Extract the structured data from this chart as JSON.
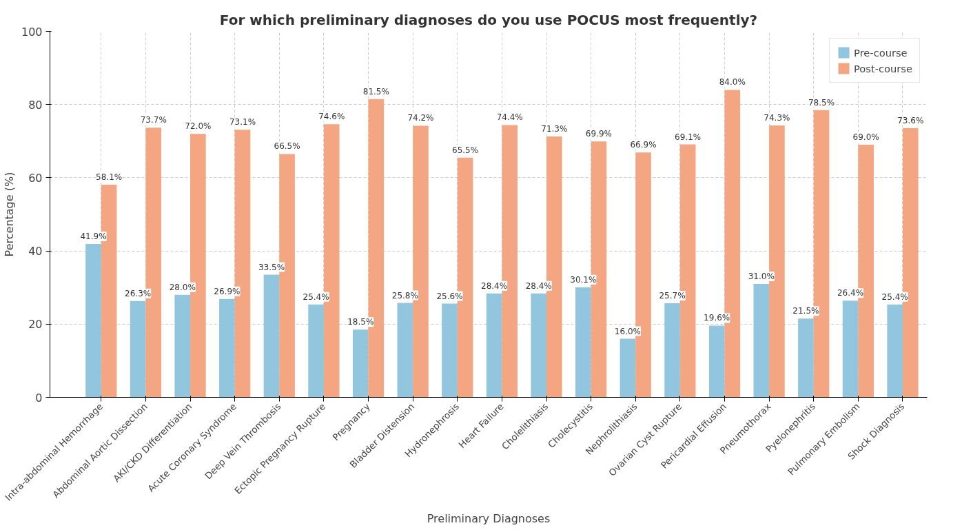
{
  "chart_data": {
    "type": "bar",
    "title": "For which preliminary diagnoses do you use POCUS most frequently?",
    "xlabel": "Preliminary Diagnoses",
    "ylabel": "Percentage (%)",
    "categories": [
      "Intra-abdominal Hemorrhage",
      "Abdominal Aortic Dissection",
      "AKI/CKD Differentiation",
      "Acute Coronary Syndrome",
      "Deep Vein Thrombosis",
      "Ectopic Pregnancy Rupture",
      "Pregnancy",
      "Bladder Distension",
      "Hydronephrosis",
      "Heart Failure",
      "Cholelithiasis",
      "Cholecystitis",
      "Nephrolithiasis",
      "Ovarian Cyst Rupture",
      "Pericardial Effusion",
      "Pneumothorax",
      "Pyelonephritis",
      "Pulmonary Embolism",
      "Shock Diagnosis"
    ],
    "series": [
      {
        "name": "Pre-course",
        "color": "#92c5de",
        "values": [
          41.9,
          26.3,
          28.0,
          26.9,
          33.5,
          25.4,
          18.5,
          25.8,
          25.6,
          28.4,
          28.4,
          30.1,
          16.0,
          25.7,
          19.6,
          31.0,
          21.5,
          26.4,
          25.4
        ],
        "value_labels": [
          "41.9%",
          "26.3%",
          "28.0%",
          "26.9%",
          "33.5%",
          "25.4%",
          "18.5%",
          "25.8%",
          "25.6%",
          "28.4%",
          "28.4%",
          "30.1%",
          "16.0%",
          "25.7%",
          "19.6%",
          "31.0%",
          "21.5%",
          "26.4%",
          "25.4%"
        ]
      },
      {
        "name": "Post-course",
        "color": "#f4a582",
        "values": [
          58.1,
          73.7,
          72.0,
          73.1,
          66.5,
          74.6,
          81.5,
          74.2,
          65.5,
          74.4,
          71.3,
          69.9,
          66.9,
          69.1,
          84.0,
          74.3,
          78.5,
          69.0,
          73.6
        ],
        "value_labels": [
          "58.1%",
          "73.7%",
          "72.0%",
          "73.1%",
          "66.5%",
          "74.6%",
          "81.5%",
          "74.2%",
          "65.5%",
          "74.4%",
          "71.3%",
          "69.9%",
          "66.9%",
          "69.1%",
          "84.0%",
          "74.3%",
          "78.5%",
          "69.0%",
          "73.6%"
        ]
      }
    ],
    "ylim": [
      0,
      100
    ],
    "yticks": [
      0,
      20,
      40,
      60,
      80,
      100
    ],
    "grid": true,
    "legend": "top right"
  }
}
